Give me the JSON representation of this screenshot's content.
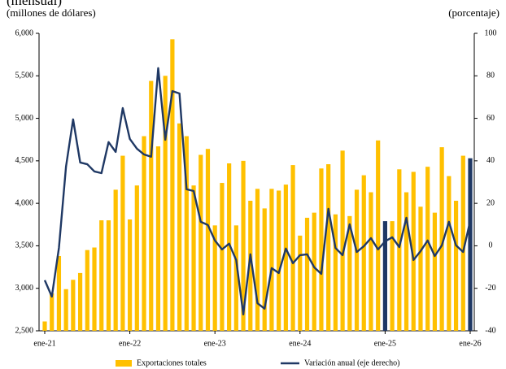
{
  "chart_data": {
    "type": "bar_line",
    "title": "(mensual)",
    "y_axis_label": "(millones de dólares)",
    "y2_axis_label": "(porcentaje)",
    "categories": [
      "ene-21",
      null,
      null,
      null,
      null,
      null,
      null,
      null,
      null,
      null,
      null,
      null,
      "ene-22",
      null,
      null,
      null,
      null,
      null,
      null,
      null,
      null,
      null,
      null,
      null,
      "ene-23",
      null,
      null,
      null,
      null,
      null,
      null,
      null,
      null,
      null,
      null,
      null,
      "ene-24",
      null,
      null,
      null,
      null,
      null,
      null,
      null,
      null,
      null,
      null,
      null,
      "ene-25",
      null,
      null,
      null,
      null,
      null,
      null,
      null,
      null,
      null,
      null,
      null,
      "ene-26"
    ],
    "series": [
      {
        "name": "Exportaciones totales",
        "type": "bar",
        "color": "#ffc000",
        "highlight_color": "#1f3864",
        "highlight_indices": [
          48,
          60
        ],
        "values": [
          2610,
          2940,
          3380,
          2990,
          3100,
          3180,
          3450,
          3480,
          3800,
          3800,
          4160,
          4560,
          3810,
          4210,
          4790,
          5440,
          4670,
          5500,
          5930,
          4940,
          4790,
          4210,
          4570,
          4640,
          3740,
          4240,
          4470,
          3740,
          4500,
          4030,
          4170,
          3940,
          4170,
          4150,
          4220,
          4450,
          3620,
          3830,
          3890,
          4410,
          4460,
          3870,
          4620,
          3850,
          4160,
          4330,
          4130,
          4740,
          3790,
          3790,
          4400,
          4130,
          4370,
          3960,
          4430,
          3890,
          4660,
          4320,
          4030,
          4560,
          4530
        ]
      },
      {
        "name": "Variación anual (eje derecho)",
        "type": "line",
        "axis": "y2",
        "color": "#1f3864",
        "values": [
          -16.2,
          -23.9,
          -1.0,
          37.3,
          59.5,
          39.2,
          38.4,
          35.0,
          34.2,
          48.8,
          44.2,
          64.8,
          50.3,
          45.7,
          43.0,
          41.9,
          83.6,
          49.9,
          72.8,
          71.7,
          26.6,
          25.8,
          11.3,
          9.8,
          2.5,
          -1.7,
          1.0,
          -6.7,
          -32.3,
          -4.0,
          -27.0,
          -29.6,
          -10.5,
          -12.8,
          -1.3,
          -8.2,
          -4.4,
          -4.0,
          -10.1,
          -13.2,
          17.4,
          -1.0,
          -4.4,
          10.1,
          -2.9,
          -0.2,
          3.6,
          -1.7,
          2.1,
          4.0,
          -0.6,
          13.2,
          -6.7,
          -2.5,
          2.5,
          -4.8,
          0.2,
          11.3,
          0.2,
          -2.9,
          11.7
        ]
      }
    ],
    "ylim": [
      2500,
      6000
    ],
    "yticks": [
      {
        "value": 2500,
        "label": "2,500"
      },
      {
        "value": 3000,
        "label": "3,000"
      },
      {
        "value": 3500,
        "label": "3,500"
      },
      {
        "value": 4000,
        "label": "4,000"
      },
      {
        "value": 4500,
        "label": "4,500"
      },
      {
        "value": 5000,
        "label": "5,000"
      },
      {
        "value": 5500,
        "label": "5,500"
      },
      {
        "value": 6000,
        "label": "6,000"
      }
    ],
    "y2lim": [
      -40,
      100
    ],
    "y2ticks": [
      -40,
      -20,
      0,
      20,
      40,
      60,
      80,
      100
    ],
    "grid": false,
    "legend": "bottom"
  }
}
